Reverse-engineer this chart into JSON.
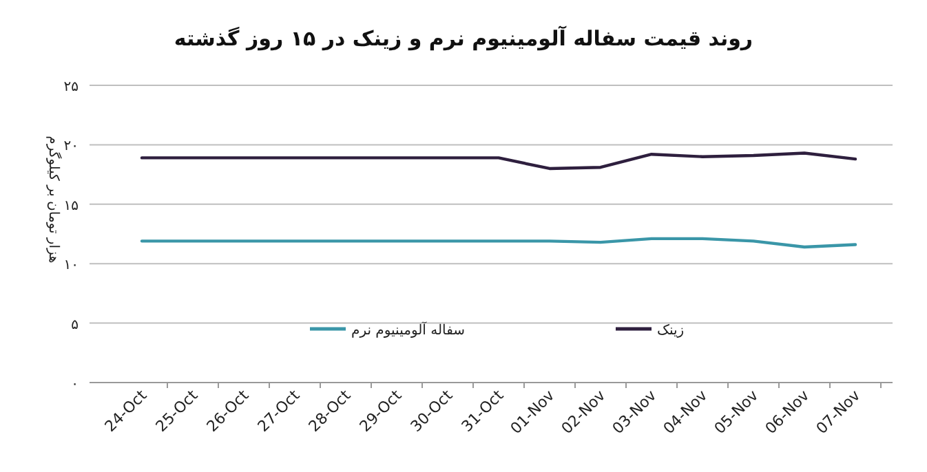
{
  "chart_data": {
    "type": "line",
    "title": "روند قیمت سفاله آلومینیوم نرم و زینک در ۱۵ روز گذشته",
    "ylabel": "هزار تومان بر کیلوگرم",
    "categories": [
      "24-Oct",
      "25-Oct",
      "26-Oct",
      "27-Oct",
      "28-Oct",
      "29-Oct",
      "30-Oct",
      "31-Oct",
      "01-Nov",
      "02-Nov",
      "03-Nov",
      "04-Nov",
      "05-Nov",
      "06-Nov",
      "07-Nov"
    ],
    "series": [
      {
        "name": "سفاله آلومینیوم نرم",
        "color": "#3a96a8",
        "values": [
          11.9,
          11.9,
          11.9,
          11.9,
          11.9,
          11.9,
          11.9,
          11.9,
          11.9,
          11.8,
          12.1,
          12.1,
          11.9,
          11.4,
          11.6
        ]
      },
      {
        "name": "زینک",
        "color": "#2e1f3e",
        "values": [
          18.9,
          18.9,
          18.9,
          18.9,
          18.9,
          18.9,
          18.9,
          18.9,
          18.0,
          18.1,
          19.2,
          19.0,
          19.1,
          19.3,
          18.8
        ]
      }
    ],
    "ylim": [
      0,
      25
    ],
    "yticks": [
      {
        "value": 0,
        "label": "۰"
      },
      {
        "value": 5,
        "label": "۵"
      },
      {
        "value": 10,
        "label": "۱۰"
      },
      {
        "value": 15,
        "label": "۱۵"
      },
      {
        "value": 20,
        "label": "۲۰"
      },
      {
        "value": 25,
        "label": "۲۵"
      }
    ],
    "grid": "y",
    "legend": "bottom",
    "marker": "none",
    "line_style": "solid"
  }
}
